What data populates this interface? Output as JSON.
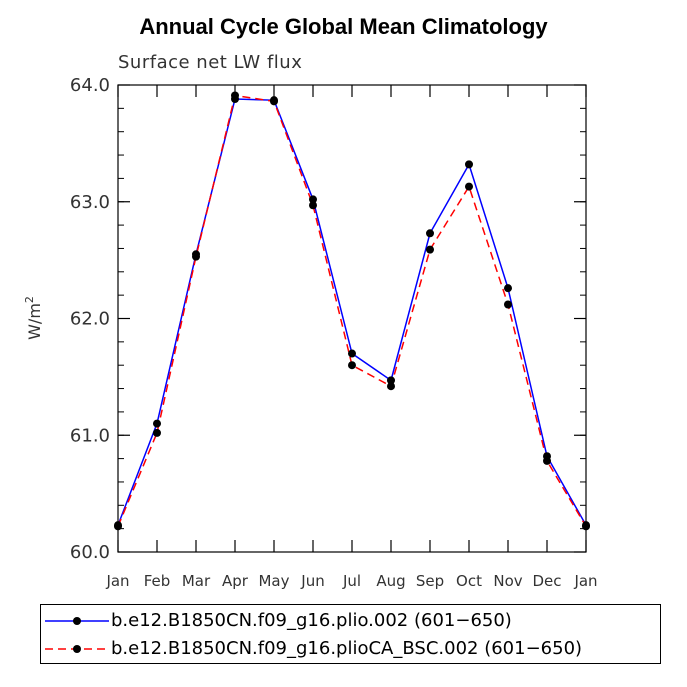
{
  "title": "Annual Cycle Global Mean Climatology",
  "subtitle": "Surface net LW flux",
  "colors": {
    "series1": "#0000ff",
    "series2": "#ff0000",
    "marker": "#000000"
  },
  "chart_data": {
    "type": "line",
    "title": "Annual Cycle Global Mean Climatology",
    "subtitle": "Surface net LW flux",
    "xlabel": "",
    "ylabel": "W/m",
    "ylabel_superscript": "2",
    "categories": [
      "Jan",
      "Feb",
      "Mar",
      "Apr",
      "May",
      "Jun",
      "Jul",
      "Aug",
      "Sep",
      "Oct",
      "Nov",
      "Dec",
      "Jan"
    ],
    "ylim": [
      60.0,
      64.0
    ],
    "yticks": [
      60.0,
      61.0,
      62.0,
      63.0,
      64.0
    ],
    "ytick_labels": [
      "60.0",
      "61.0",
      "62.0",
      "63.0",
      "64.0"
    ],
    "series": [
      {
        "name": "b.e12.B1850CN.f09_g16.plio.002 (601-650)",
        "style": "solid",
        "values": [
          60.23,
          61.1,
          62.55,
          63.88,
          63.87,
          63.02,
          61.7,
          61.47,
          62.73,
          63.32,
          62.26,
          60.82,
          60.23
        ]
      },
      {
        "name": "b.e12.B1850CN.f09_g16.plioCA_BSC.002 (601-650)",
        "style": "dashed",
        "values": [
          60.22,
          61.02,
          62.53,
          63.91,
          63.86,
          62.97,
          61.6,
          61.42,
          62.59,
          63.13,
          62.12,
          60.78,
          60.22
        ]
      }
    ]
  },
  "legend": [
    {
      "label": "b.e12.B1850CN.f09_g16.plio.002 (601−650)"
    },
    {
      "label": "b.e12.B1850CN.f09_g16.plioCA_BSC.002 (601−650)"
    }
  ]
}
